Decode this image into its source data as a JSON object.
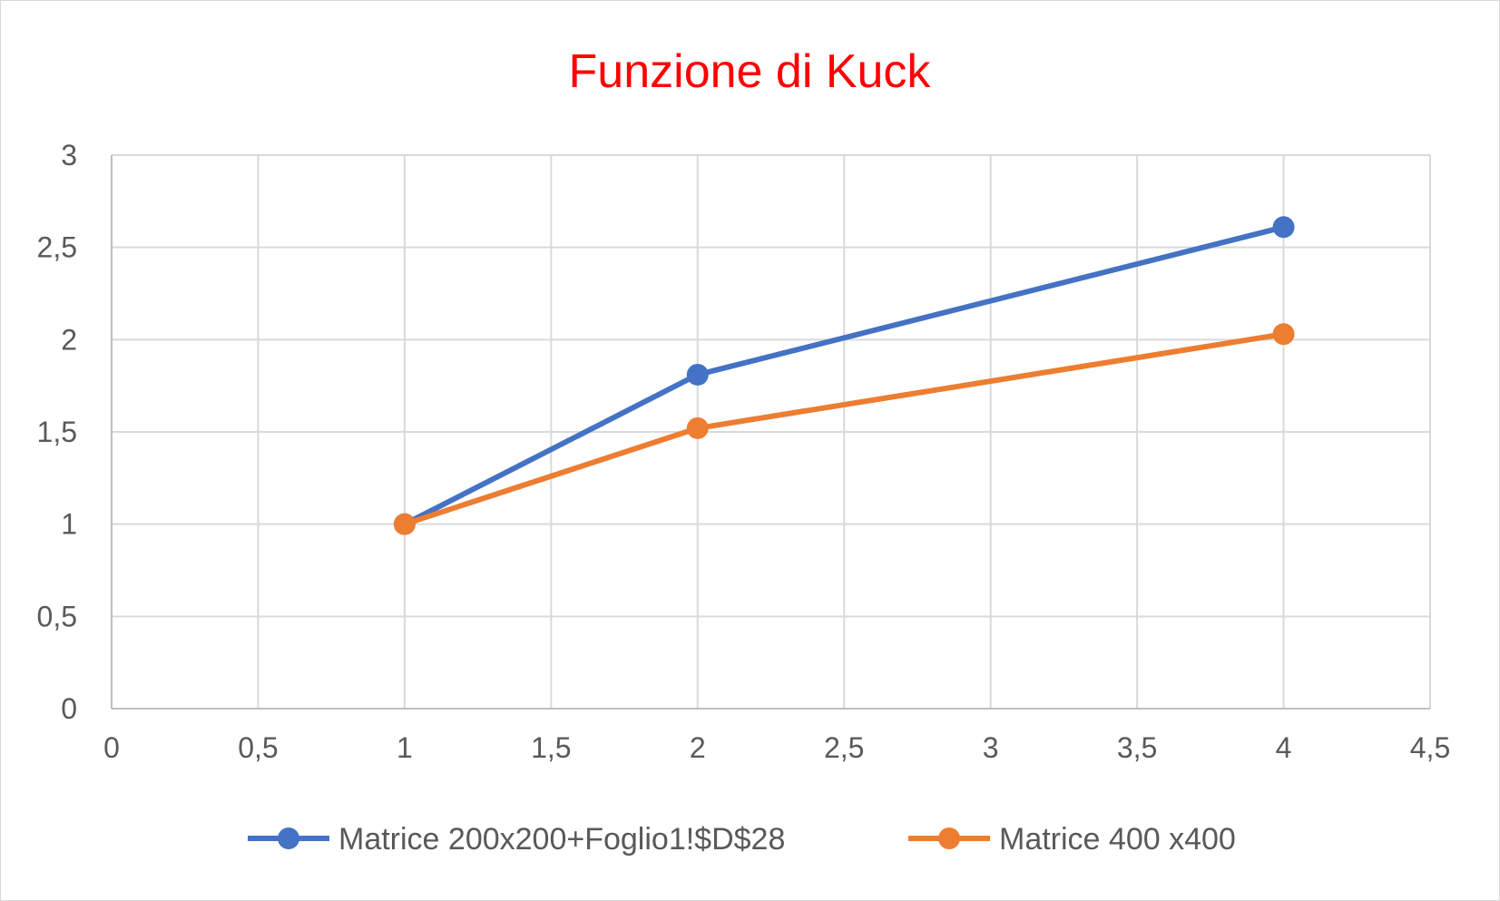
{
  "chart_data": {
    "type": "scatter",
    "title": "Funzione di Kuck",
    "title_color": "#ff0000",
    "xlim": [
      0,
      4.5
    ],
    "ylim": [
      0,
      3
    ],
    "x_ticks": [
      0,
      0.5,
      1,
      1.5,
      2,
      2.5,
      3,
      3.5,
      4,
      4.5
    ],
    "y_ticks": [
      0,
      0.5,
      1,
      1.5,
      2,
      2.5,
      3
    ],
    "x_tick_labels": [
      "0",
      "0,5",
      "1",
      "1,5",
      "2",
      "2,5",
      "3",
      "3,5",
      "4",
      "4,5"
    ],
    "y_tick_labels": [
      "0",
      "0,5",
      "1",
      "1,5",
      "2",
      "2,5",
      "3"
    ],
    "grid": true,
    "legend_position": "bottom",
    "series": [
      {
        "name": "Matrice 200x200+Foglio1!$D$28",
        "color": "#4472c4",
        "x": [
          1,
          2,
          4
        ],
        "y": [
          1,
          1.81,
          2.61
        ]
      },
      {
        "name": "Matrice 400 x400",
        "color": "#ed7d31",
        "x": [
          1,
          2,
          4
        ],
        "y": [
          1,
          1.52,
          2.03
        ]
      }
    ]
  }
}
